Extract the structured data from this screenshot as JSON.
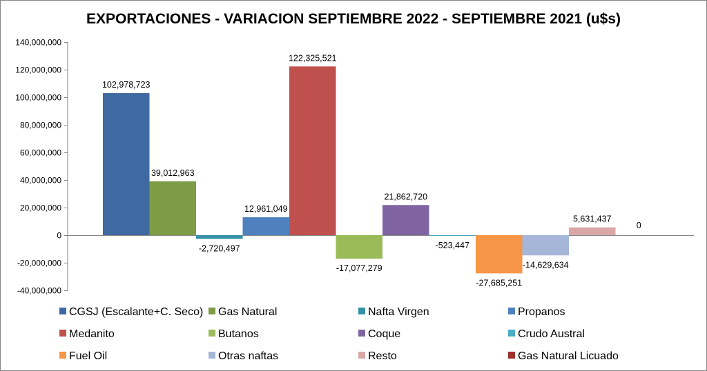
{
  "chart_data": {
    "type": "bar",
    "title": "EXPORTACIONES - VARIACION SEPTIEMBRE 2022 - SEPTIEMBRE 2021 (u$s)",
    "xlabel": "",
    "ylabel": "",
    "ylim": [
      -40000000,
      140000000
    ],
    "yticks": [
      140000000,
      120000000,
      100000000,
      80000000,
      60000000,
      40000000,
      20000000,
      0,
      -20000000,
      -40000000
    ],
    "ytick_labels": [
      "140,000,000",
      "120,000,000",
      "100,000,000",
      "80,000,000",
      "60,000,000",
      "40,000,000",
      "20,000,000",
      "0",
      "-20,000,000",
      "-40,000,000"
    ],
    "grid": false,
    "legend_position": "bottom",
    "series": [
      {
        "name": "CGSJ (Escalante+C. Seco)",
        "value": 102978723,
        "label": "102,978,723",
        "color": "#3E6AA1"
      },
      {
        "name": "Gas Natural",
        "value": 39012963,
        "label": "39,012,963",
        "color": "#7E9C45"
      },
      {
        "name": "Nafta Virgen",
        "value": -2720497,
        "label": "-2,720,497",
        "color": "#3591A6"
      },
      {
        "name": "Propanos",
        "value": 12961049,
        "label": "12,961,049",
        "color": "#4E81BD"
      },
      {
        "name": "Medanito",
        "value": 122325521,
        "label": "122,325,521",
        "color": "#C0504D"
      },
      {
        "name": "Butanos",
        "value": -17077279,
        "label": "-17,077,279",
        "color": "#9BBB59"
      },
      {
        "name": "Coque",
        "value": 21862720,
        "label": "21,862,720",
        "color": "#8064A2"
      },
      {
        "name": "Crudo Austral",
        "value": -523447,
        "label": "-523,447",
        "color": "#4BACC6"
      },
      {
        "name": "Fuel Oil",
        "value": -27685251,
        "label": "-27,685,251",
        "color": "#F79646"
      },
      {
        "name": "Otras naftas",
        "value": -14629634,
        "label": "-14,629,634",
        "color": "#A5B6D8"
      },
      {
        "name": "Resto",
        "value": 5631437,
        "label": "5,631,437",
        "color": "#D9A7A5"
      },
      {
        "name": "Gas Natural Licuado",
        "value": 0,
        "label": "0",
        "color": "#A0302E"
      }
    ]
  }
}
